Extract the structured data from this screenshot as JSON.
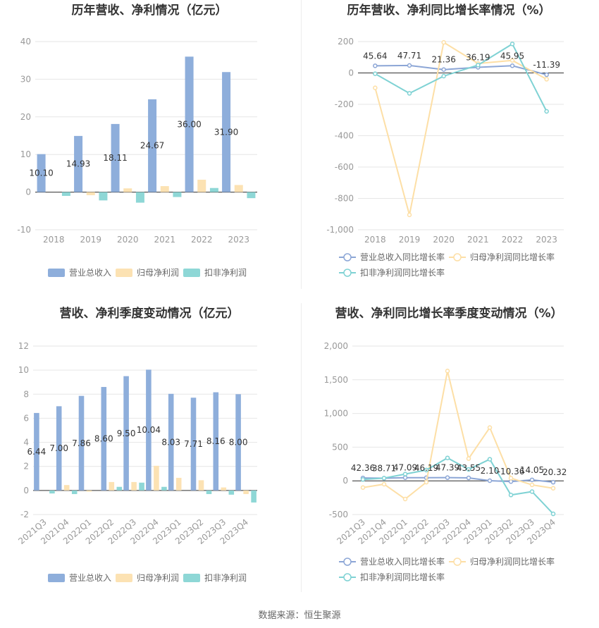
{
  "source": "数据来源：恒生聚源",
  "colors": {
    "revenue": "#8eaedb",
    "net_profit": "#fce2b3",
    "deducted_profit": "#8ed7d6",
    "revenue_line": "#8ca6d6",
    "net_line": "#fddfa6",
    "deducted_line": "#7fd2d4",
    "grid": "#e6e6e6",
    "axis": "#333333"
  },
  "chart_data": [
    {
      "type": "bar",
      "title": "历年营收、净利情况（亿元）",
      "categories": [
        "2018",
        "2019",
        "2020",
        "2021",
        "2022",
        "2023"
      ],
      "ylim": [
        -10,
        40
      ],
      "yticks": [
        -10,
        0,
        10,
        20,
        30,
        40
      ],
      "legend_position": "bottom",
      "series": [
        {
          "name": "营业总收入",
          "values": [
            10.1,
            14.93,
            18.11,
            24.67,
            36.0,
            31.9
          ],
          "labels": [
            "10.10",
            "14.93",
            "18.11",
            "24.67",
            "36.00",
            "31.90"
          ]
        },
        {
          "name": "归母净利润",
          "values": [
            0,
            -0.8,
            1.0,
            1.6,
            3.3,
            1.9
          ]
        },
        {
          "name": "扣非净利润",
          "values": [
            -1.0,
            -2.2,
            -2.8,
            -1.3,
            1.1,
            -1.6
          ]
        }
      ]
    },
    {
      "type": "line",
      "title": "历年营收、净利同比增长率情况（%）",
      "categories": [
        "2018",
        "2019",
        "2020",
        "2021",
        "2022",
        "2023"
      ],
      "ylim": [
        -1000,
        200
      ],
      "yticks": [
        -1000,
        -800,
        -600,
        -400,
        -200,
        0,
        200
      ],
      "yticklabels": [
        "-1,000",
        "-800",
        "-600",
        "-400",
        "-200",
        "0",
        "200"
      ],
      "legend_position": "bottom",
      "series": [
        {
          "name": "营业总收入同比增长率",
          "values": [
            45.64,
            47.71,
            21.36,
            36.19,
            45.95,
            -11.39
          ],
          "labels": [
            "45.64",
            "47.71",
            "21.36",
            "36.19",
            "45.95",
            "-11.39"
          ]
        },
        {
          "name": "归母净利润同比增长率",
          "values": [
            -95,
            -905,
            195,
            60,
            80,
            -40
          ]
        },
        {
          "name": "扣非净利润同比增长率",
          "values": [
            -5,
            -130,
            -20,
            50,
            185,
            -245
          ]
        }
      ]
    },
    {
      "type": "bar",
      "title": "营收、净利季度变动情况（亿元）",
      "categories": [
        "2021Q3",
        "2021Q4",
        "2022Q1",
        "2022Q2",
        "2022Q3",
        "2022Q4",
        "2023Q1",
        "2023Q2",
        "2023Q3",
        "2023Q4"
      ],
      "ylim": [
        -2,
        12
      ],
      "yticks": [
        -2,
        0,
        2,
        4,
        6,
        8,
        10,
        12
      ],
      "legend_position": "bottom",
      "series": [
        {
          "name": "营业总收入",
          "values": [
            6.44,
            7.0,
            7.86,
            8.6,
            9.5,
            10.04,
            8.03,
            7.71,
            8.16,
            8.0
          ],
          "labels": [
            "6.44",
            "7.00",
            "7.86",
            "8.60",
            "9.50",
            "10.04",
            "8.03",
            "7.71",
            "8.16",
            "8.00"
          ]
        },
        {
          "name": "归母净利润",
          "values": [
            0,
            0.45,
            -0.1,
            0.7,
            0.7,
            2.05,
            1.05,
            0.85,
            0.25,
            -0.3
          ]
        },
        {
          "name": "扣非净利润",
          "values": [
            -0.25,
            -0.3,
            0,
            0.3,
            0.65,
            0.3,
            0,
            -0.3,
            -0.35,
            -1.0
          ]
        }
      ]
    },
    {
      "type": "line",
      "title": "营收、净利同比增长率季度变动情况（%）",
      "categories": [
        "2021Q3",
        "2021Q4",
        "2022Q1",
        "2022Q2",
        "2022Q3",
        "2022Q4",
        "2023Q1",
        "2023Q2",
        "2023Q3",
        "2023Q4"
      ],
      "ylim": [
        -500,
        2000
      ],
      "yticks": [
        -500,
        0,
        500,
        1000,
        1500,
        2000
      ],
      "yticklabels": [
        "-500",
        "0",
        "500",
        "1,000",
        "1,500",
        "2,000"
      ],
      "legend_position": "bottom",
      "series": [
        {
          "name": "营业总收入同比增长率",
          "values": [
            42.36,
            38.71,
            47.09,
            46.19,
            47.39,
            43.55,
            2.1,
            -10.36,
            14.05,
            -20.32
          ],
          "labels": [
            "42.36",
            "38.71",
            "47.09",
            "46.19",
            "47.39",
            "43.55",
            "2.10",
            "-10.36",
            "14.05",
            "-20.32"
          ]
        },
        {
          "name": "归母净利润同比增长率",
          "values": [
            -100,
            -50,
            -270,
            -20,
            1630,
            330,
            790,
            40,
            -60,
            -110
          ]
        },
        {
          "name": "扣非净利润同比增长率",
          "values": [
            20,
            40,
            100,
            160,
            340,
            170,
            320,
            -210,
            -160,
            -490
          ]
        }
      ]
    }
  ]
}
